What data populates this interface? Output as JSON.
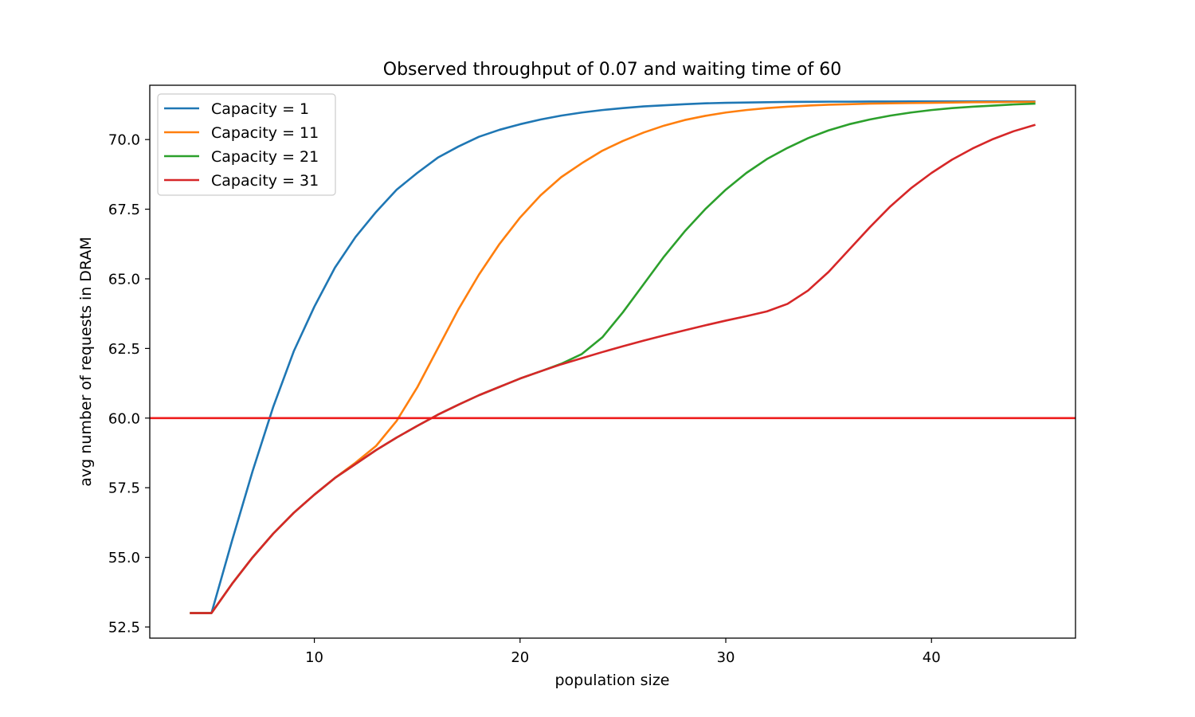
{
  "chart_data": {
    "type": "line",
    "title": "Observed throughput of 0.07 and waiting time of 60",
    "xlabel": "population size",
    "ylabel": "avg number of requests in DRAM",
    "xlim": [
      2,
      47
    ],
    "ylim": [
      52.1,
      71.95
    ],
    "xticks": [
      10,
      20,
      30,
      40
    ],
    "yticks": [
      52.5,
      55.0,
      57.5,
      60.0,
      62.5,
      65.0,
      67.5,
      70.0
    ],
    "ytick_labels": [
      "52.5",
      "55.0",
      "57.5",
      "60.0",
      "62.5",
      "65.0",
      "67.5",
      "70.0"
    ],
    "grid": false,
    "legend_position": "upper-left",
    "x": [
      4,
      5,
      6,
      7,
      8,
      9,
      10,
      11,
      12,
      13,
      14,
      15,
      16,
      17,
      18,
      19,
      20,
      21,
      22,
      23,
      24,
      25,
      26,
      27,
      28,
      29,
      30,
      31,
      32,
      33,
      34,
      35,
      36,
      37,
      38,
      39,
      40,
      41,
      42,
      43,
      44,
      45
    ],
    "series": [
      {
        "name": "Capacity = 1",
        "color": "#1f77b4",
        "values": [
          53.0,
          53.0,
          55.6,
          58.1,
          60.4,
          62.4,
          64.0,
          65.4,
          66.5,
          67.4,
          68.2,
          68.8,
          69.35,
          69.75,
          70.1,
          70.35,
          70.55,
          70.72,
          70.86,
          70.97,
          71.06,
          71.13,
          71.19,
          71.23,
          71.27,
          71.3,
          71.32,
          71.33,
          71.34,
          71.35,
          71.355,
          71.36,
          71.36,
          71.365,
          71.365,
          71.37,
          71.37,
          71.37,
          71.37,
          71.37,
          71.37,
          71.37
        ]
      },
      {
        "name": "Capacity = 11",
        "color": "#ff7f0e",
        "values": [
          53.0,
          53.0,
          54.05,
          55.0,
          55.85,
          56.6,
          57.25,
          57.85,
          58.4,
          59.0,
          59.9,
          61.1,
          62.5,
          63.9,
          65.15,
          66.25,
          67.2,
          68.0,
          68.65,
          69.15,
          69.6,
          69.95,
          70.25,
          70.5,
          70.7,
          70.85,
          70.97,
          71.06,
          71.13,
          71.18,
          71.22,
          71.25,
          71.27,
          71.29,
          71.3,
          71.31,
          71.32,
          71.33,
          71.34,
          71.345,
          71.35,
          71.35
        ]
      },
      {
        "name": "Capacity = 21",
        "color": "#2ca02c",
        "values": [
          53.0,
          53.0,
          54.05,
          55.0,
          55.85,
          56.6,
          57.25,
          57.85,
          58.35,
          58.85,
          59.3,
          59.72,
          60.12,
          60.48,
          60.82,
          61.12,
          61.42,
          61.68,
          61.95,
          62.3,
          62.9,
          63.8,
          64.8,
          65.8,
          66.7,
          67.5,
          68.2,
          68.8,
          69.3,
          69.7,
          70.05,
          70.33,
          70.55,
          70.72,
          70.86,
          70.97,
          71.06,
          71.13,
          71.18,
          71.22,
          71.26,
          71.29
        ]
      },
      {
        "name": "Capacity = 31",
        "color": "#d62728",
        "values": [
          53.0,
          53.0,
          54.05,
          55.0,
          55.85,
          56.6,
          57.25,
          57.85,
          58.35,
          58.85,
          59.3,
          59.72,
          60.12,
          60.48,
          60.82,
          61.12,
          61.42,
          61.68,
          61.93,
          62.15,
          62.37,
          62.58,
          62.78,
          62.97,
          63.15,
          63.33,
          63.5,
          63.66,
          63.83,
          64.1,
          64.58,
          65.25,
          66.05,
          66.85,
          67.6,
          68.25,
          68.8,
          69.28,
          69.68,
          70.02,
          70.3,
          70.52
        ]
      }
    ],
    "reference_line": {
      "y": 60.0,
      "color": "#ee1c1c"
    }
  }
}
